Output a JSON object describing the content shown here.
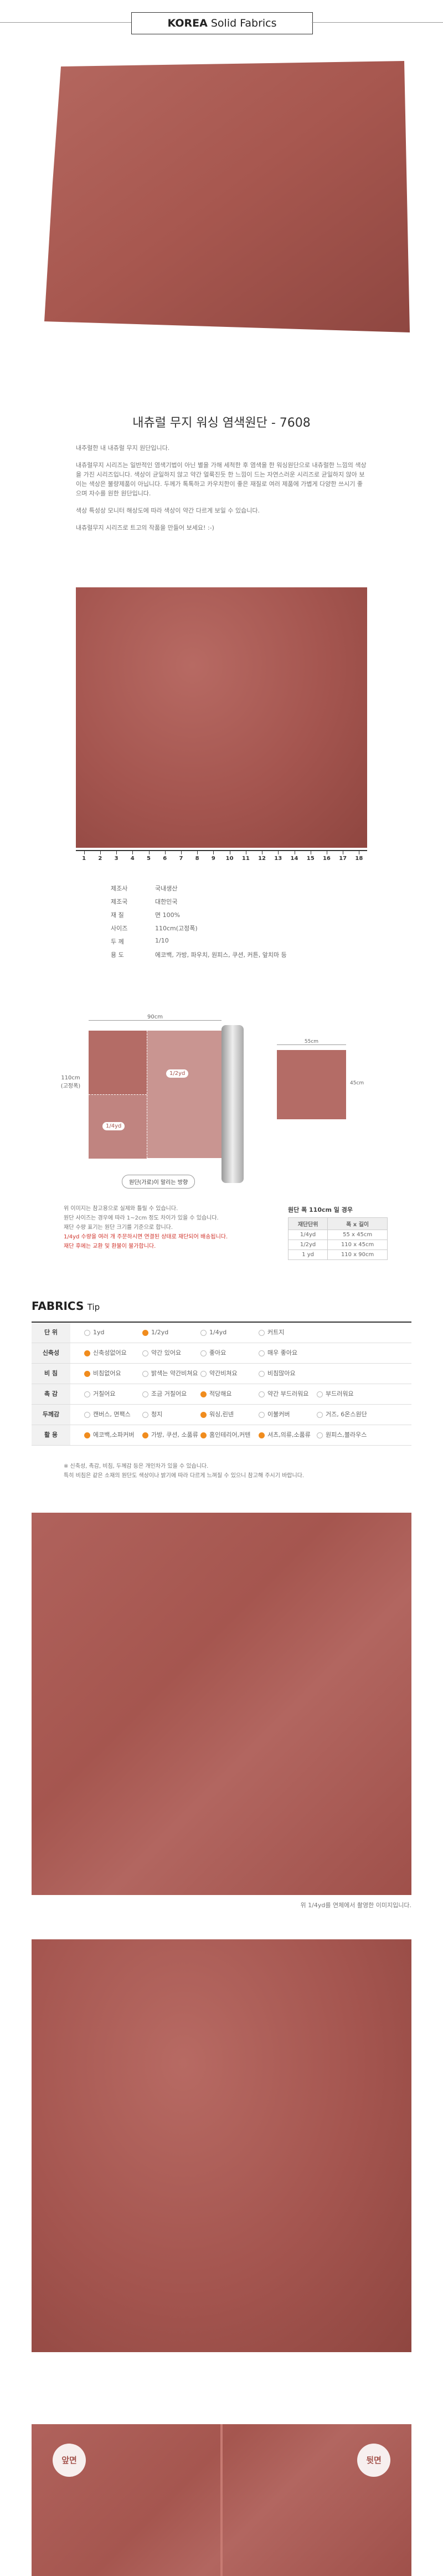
{
  "header": {
    "brand": "KOREA",
    "title": "Solid Fabrics"
  },
  "product_title": "내츄럴 무지 워싱 염색원단 - 7608",
  "description": [
    "내추럴한 내 내츄럴 무지 원단입니다.",
    "내츄럴무지 시리즈는 일반적인 염색기법이 아닌 별을 가해 세척한 후 염색을 한 워싱원단으로 내츄럴한 느낌의 색상을 가진 시리즈입니다. 색상이 균일하지 않고 약간 얼룩진듯 한 느낌이 드는 자연스러운 시리즈로 균일하지 않아 보이는 색상은 불량제품이 아닙니다. 두께가 톡톡하고 카우치한이 좋은 재질로 여러 제품에 가볍게 다양한 쓰시기 좋으며 자수를 원한 원단입니다.",
    "색상 특성상 모니터 해상도에 따라 색상이 약간 다르게 보일 수 있습니다.",
    "내츄럴무지 시리즈로 트고의 작품을 만들어 보세요! :-)"
  ],
  "ruler": [
    1,
    2,
    3,
    4,
    5,
    6,
    7,
    8,
    9,
    10,
    11,
    12,
    13,
    14,
    15,
    16,
    17,
    18
  ],
  "specs": [
    [
      "제조사",
      "국내생산"
    ],
    [
      "제조국",
      "대한민국"
    ],
    [
      "재 질",
      "면 100%"
    ],
    [
      "사이즈",
      "110cm(고정폭)"
    ],
    [
      "두 께",
      "1/10"
    ],
    [
      "용 도",
      "에코백, 가방, 파우치, 원피스, 쿠션, 커튼, 앞치마 등"
    ]
  ],
  "diagram": {
    "width": "90cm",
    "height": "110cm\n(고정폭)",
    "half": "1/2yd",
    "quarter": "1/4yd",
    "direction": "원단(가로)이 말리는 방향",
    "swatch_width": "55cm",
    "swatch_height": "45cm"
  },
  "notes": [
    "위 이미지는 참고용으로 실제와 틀릴 수 있습니다.",
    "원단 사이즈는 경우에 따라 1~2cm 정도 차이가 있을 수 있습니다.",
    "재단 수량 표기는 원단 크기를 기준으로 합니다.",
    "1/4yd 수량을 여러 개 주문하시면 연결된 상태로 재단되어 배송됩니다.",
    "재단 후에는 교환 및 환불이 불가합니다."
  ],
  "size_table": {
    "caption": "원단 폭 110cm 일 경우",
    "headers": [
      "재단단위",
      "폭 x 길이"
    ],
    "rows": [
      [
        "1/4yd",
        "55 x 45cm"
      ],
      [
        "1/2yd",
        "110 x 45cm"
      ],
      [
        "1 yd",
        "110 x 90cm"
      ]
    ]
  },
  "tips": {
    "title_bold": "FABRICS",
    "title": "Tip",
    "rows": [
      {
        "label": "단 위",
        "options": [
          {
            "text": "1yd",
            "checked": false
          },
          {
            "text": "1/2yd",
            "checked": true
          },
          {
            "text": "1/4yd",
            "checked": false
          },
          {
            "text": "커트지",
            "checked": false
          }
        ]
      },
      {
        "label": "신축성",
        "options": [
          {
            "text": "신축성없어요",
            "checked": true
          },
          {
            "text": "약간 있어요",
            "checked": false
          },
          {
            "text": "좋아요",
            "checked": false
          },
          {
            "text": "매우 좋아요",
            "checked": false
          }
        ]
      },
      {
        "label": "비 침",
        "options": [
          {
            "text": "비침없어요",
            "checked": true
          },
          {
            "text": "밝색는 약간비쳐요",
            "checked": false
          },
          {
            "text": "약간비쳐요",
            "checked": false
          },
          {
            "text": "비침많아요",
            "checked": false
          }
        ]
      },
      {
        "label": "촉 감",
        "options": [
          {
            "text": "거칠어요",
            "checked": false
          },
          {
            "text": "조금 거칠어요",
            "checked": false
          },
          {
            "text": "적당해요",
            "checked": true
          },
          {
            "text": "약간 부드러워요",
            "checked": false
          },
          {
            "text": "부드러워요",
            "checked": false
          }
        ]
      },
      {
        "label": "두께감",
        "options": [
          {
            "text": "캔버스, 면팩스",
            "checked": false
          },
          {
            "text": "청지",
            "checked": false
          },
          {
            "text": "워싱,린넨",
            "checked": true
          },
          {
            "text": "이불커버",
            "checked": false
          },
          {
            "text": "거즈, 6온스원단",
            "checked": false
          }
        ]
      },
      {
        "label": "활 용",
        "options": [
          {
            "text": "에코백,소파커버",
            "checked": true
          },
          {
            "text": "가방, 쿠션, 소품류",
            "checked": true
          },
          {
            "text": "홈인테리어,커텐",
            "checked": true
          },
          {
            "text": "셔츠,의류,소품류",
            "checked": true
          },
          {
            "text": "원피스,블라우스",
            "checked": false
          }
        ]
      }
    ]
  },
  "tip_notes": [
    "※ 신축성, 촉감, 비침, 두께감 등은 개인차가 있을 수 있습니다.",
    "특히 비침은 같은 소재의 원단도 색상이나 밝기에 따라 다르게 느껴질 수 있으니 참고해 주시기 바랍니다."
  ],
  "photo_caption": "위 1/4yd를 연체에서 촬영한 이미지입니다.",
  "side_labels": [
    "앞면",
    "뒷면"
  ]
}
